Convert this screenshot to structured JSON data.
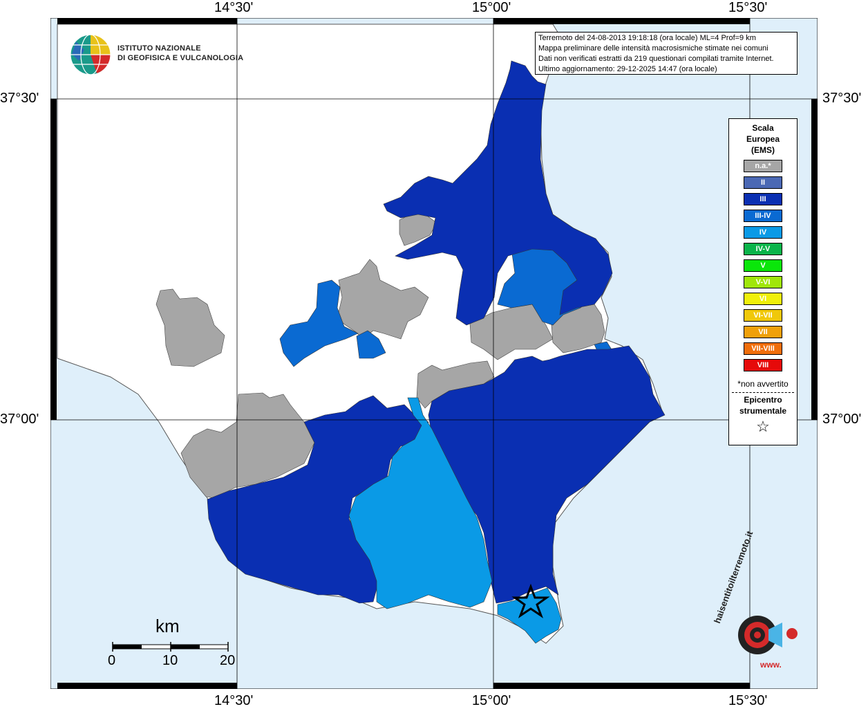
{
  "coordinates": {
    "lon_labels": [
      "14°30'",
      "15°00'",
      "15°30'"
    ],
    "lat_labels": [
      "37°30'",
      "37°00'"
    ]
  },
  "logo": {
    "line1": "ISTITUTO NAZIONALE",
    "line2": "DI GEOFISICA E VULCANOLOGIA"
  },
  "info_box": {
    "line1": "Terremoto del 24-08-2013 19:18:18 (ora locale) ML=4 Prof=9 km",
    "line2": "Mappa preliminare delle intensità macrosismiche stimate nei comuni",
    "line3": "Dati non verificati estratti da 219 questionari compilati tramite Internet.",
    "line4": "Ultimo aggiornamento: 29-12-2025 14:47 (ora locale)"
  },
  "legend": {
    "title_line1": "Scala",
    "title_line2": "Europea",
    "title_line3": "(EMS)",
    "items": [
      {
        "label": "n.a.*",
        "color": "#a6a6a6"
      },
      {
        "label": "II",
        "color": "#4a68b4"
      },
      {
        "label": "III",
        "color": "#0a2fb2"
      },
      {
        "label": "III-IV",
        "color": "#0a6ad2"
      },
      {
        "label": "IV",
        "color": "#0a9ae6"
      },
      {
        "label": "IV-V",
        "color": "#0ab44a"
      },
      {
        "label": "V",
        "color": "#0ae60a"
      },
      {
        "label": "V-VI",
        "color": "#a0e60a"
      },
      {
        "label": "VI",
        "color": "#f0f00a"
      },
      {
        "label": "VI-VII",
        "color": "#f0c80a"
      },
      {
        "label": "VII",
        "color": "#f0a00a"
      },
      {
        "label": "VII-VIII",
        "color": "#f06e0a"
      },
      {
        "label": "VIII",
        "color": "#e60a0a"
      }
    ],
    "note": "*non avvertito",
    "epicentre_line1": "Epicentro",
    "epicentre_line2": "strumentale",
    "epicentre_symbol": "☆"
  },
  "scalebar": {
    "unit": "km",
    "labels": [
      "0",
      "10",
      "20"
    ]
  },
  "haisentito": {
    "text": "haisentitoilterremoto.it",
    "prefix": "www."
  },
  "colors": {
    "sea": "#dfeffa",
    "land_white": "#ffffff",
    "gray": "#a6a6a6",
    "ems_III": "#0a2fb2",
    "ems_III_IV": "#0a6ad2",
    "ems_IV": "#0a9ae6"
  }
}
